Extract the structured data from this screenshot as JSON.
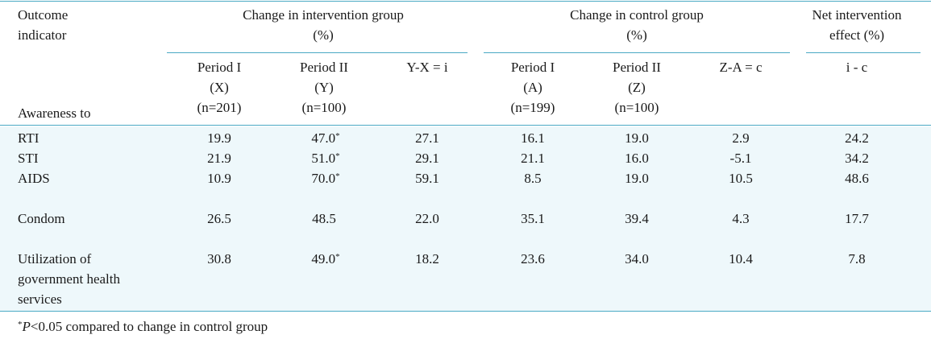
{
  "header": {
    "outcome_indicator_line1": "Outcome",
    "outcome_indicator_line2": "indicator",
    "awareness_to": "Awareness to",
    "intervention_group_line1": "Change in intervention group",
    "intervention_group_line2": "(%)",
    "control_group_line1": "Change in control group",
    "control_group_line2": "(%)",
    "net_effect_line1": "Net intervention",
    "net_effect_line2": "effect (%)",
    "sub": {
      "x": [
        "Period I",
        "(X)",
        "(n=201)"
      ],
      "y": [
        "Period II",
        "(Y)",
        "(n=100)"
      ],
      "i": "Y-X = i",
      "a": [
        "Period I",
        "(A)",
        "(n=199)"
      ],
      "z": [
        "Period II",
        "(Z)",
        "(n=100)"
      ],
      "c": "Z-A = c",
      "net": "i - c"
    }
  },
  "rows": [
    {
      "label": "RTI",
      "x": "19.9",
      "y": "47.0",
      "y_sig": "*",
      "i": "27.1",
      "a": "16.1",
      "z": "19.0",
      "c": "2.9",
      "net": "24.2"
    },
    {
      "label": "STI",
      "x": "21.9",
      "y": "51.0",
      "y_sig": "*",
      "i": "29.1",
      "a": "21.1",
      "z": "16.0",
      "c": "-5.1",
      "net": "34.2"
    },
    {
      "label": "AIDS",
      "x": "10.9",
      "y": "70.0",
      "y_sig": "*",
      "i": "59.1",
      "a": "8.5",
      "z": "19.0",
      "c": "10.5",
      "net": "48.6"
    },
    {
      "label": "Condom",
      "x": "26.5",
      "y": "48.5",
      "y_sig": "",
      "i": "22.0",
      "a": "35.1",
      "z": "39.4",
      "c": "4.3",
      "net": "17.7"
    },
    {
      "label_lines": [
        "Utilization of",
        "government health",
        "services"
      ],
      "x": "30.8",
      "y": "49.0",
      "y_sig": "*",
      "i": "18.2",
      "a": "23.6",
      "z": "34.0",
      "c": "10.4",
      "net": "7.8"
    }
  ],
  "footnote": {
    "marker": "*",
    "p": "P",
    "text": "<0.05 compared to change in control group"
  }
}
